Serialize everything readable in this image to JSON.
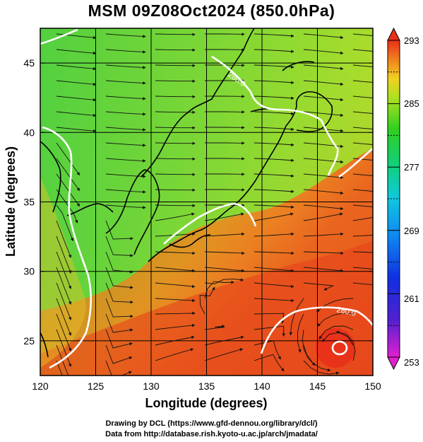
{
  "title": "MSM 09Z08Oct2024 (850.0hPa)",
  "xlabel": "Longitude (degrees)",
  "ylabel": "Latitude  (degrees)",
  "x_ticks": [
    "120",
    "125",
    "130",
    "135",
    "140",
    "145",
    "150"
  ],
  "y_ticks": [
    "25",
    "30",
    "35",
    "40",
    "45"
  ],
  "colorbar_labels": [
    "293",
    "285",
    "277",
    "269",
    "261",
    "253"
  ],
  "contour_labels": [
    "280.0",
    "280.0"
  ],
  "credits": {
    "line1": "Drawing by DCL (https://www.gfd-dennou.org/library/dcl/)",
    "line2": "Data from http://database.rish.kyoto-u.ac.jp/arch/jmadata/"
  },
  "map": {
    "lon_range": [
      120,
      150
    ],
    "lat_range": [
      22.5,
      47.5
    ],
    "grid_lon_step": 5,
    "grid_lat_step": 5
  },
  "colorbar": {
    "min": 253,
    "max": 293,
    "colormap": "rainbow (magenta-blue-cyan-green-yellow-orange-red)"
  },
  "colors": {
    "warm": "#e8401a",
    "mid": "#f08a24",
    "cool": "#5ed23a",
    "contour": "#ffffff",
    "coastline": "#000000"
  }
}
